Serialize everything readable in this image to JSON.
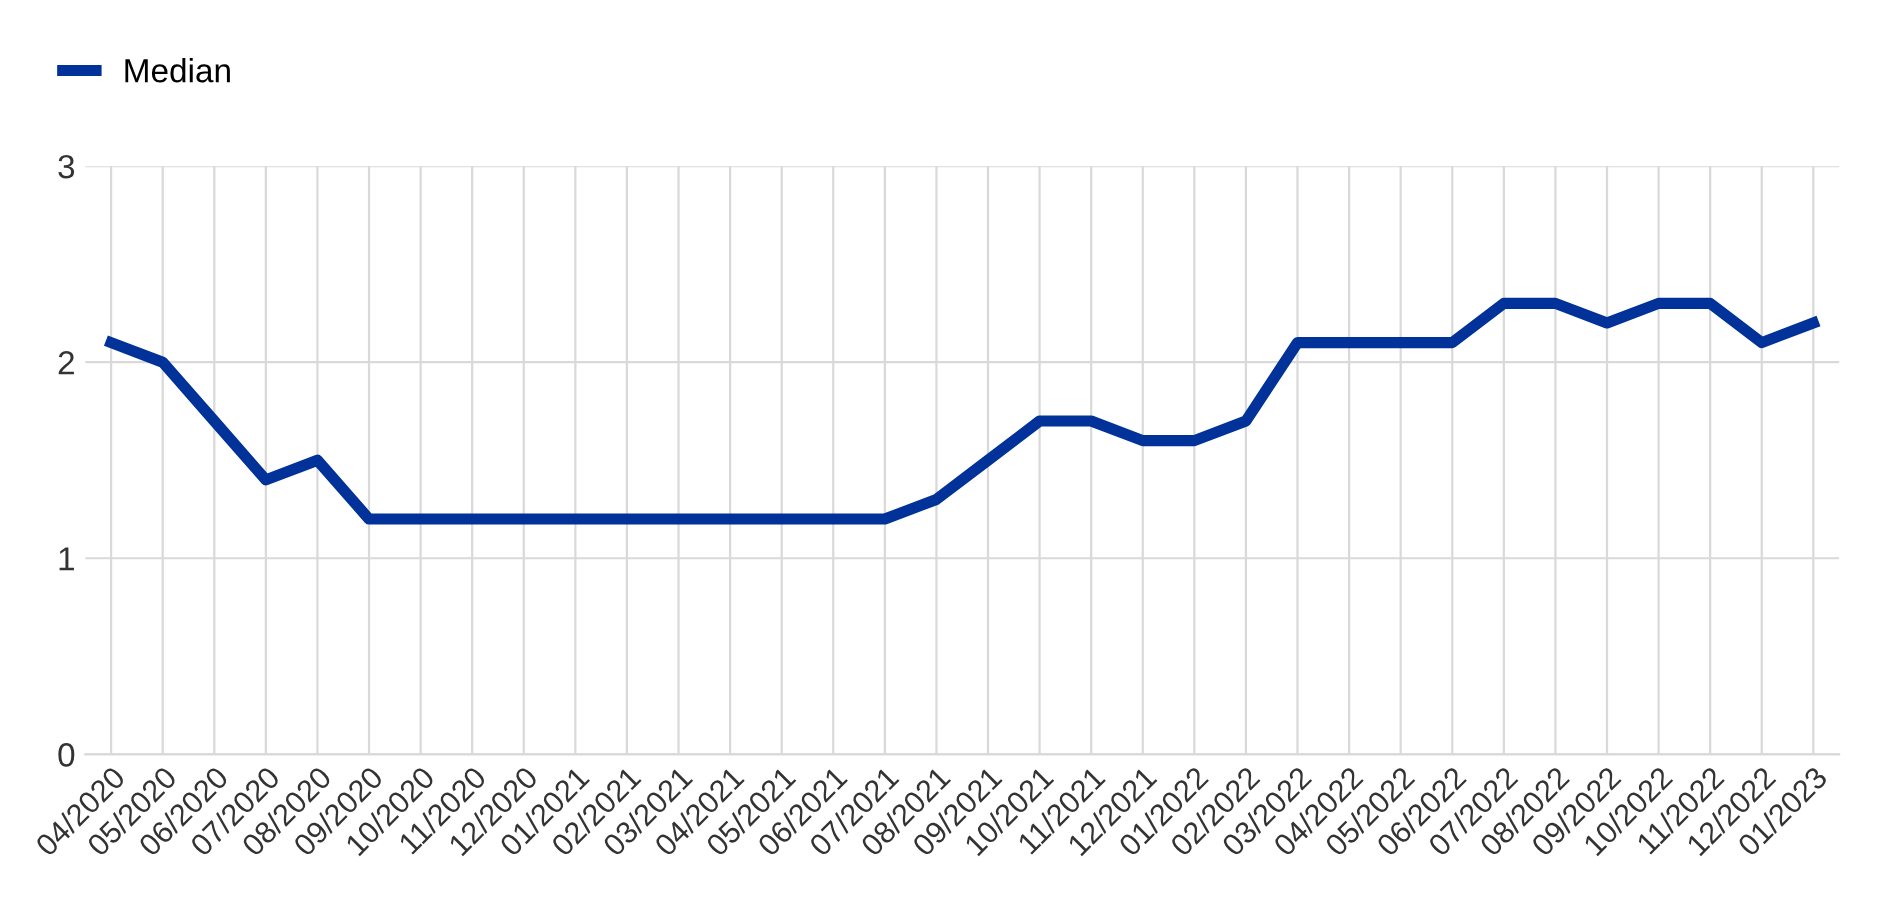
{
  "chart_data": {
    "type": "line",
    "categories": [
      "04/2020",
      "05/2020",
      "06/2020",
      "07/2020",
      "08/2020",
      "09/2020",
      "10/2020",
      "11/2020",
      "12/2020",
      "01/2021",
      "02/2021",
      "03/2021",
      "04/2021",
      "05/2021",
      "06/2021",
      "07/2021",
      "08/2021",
      "09/2021",
      "10/2021",
      "11/2021",
      "12/2021",
      "01/2022",
      "02/2022",
      "03/2022",
      "04/2022",
      "05/2022",
      "06/2022",
      "07/2022",
      "08/2022",
      "09/2022",
      "10/2022",
      "11/2022",
      "12/2022",
      "01/2023"
    ],
    "series": [
      {
        "name": "Median",
        "color": "#003299",
        "values": [
          2.1,
          2.0,
          1.7,
          1.4,
          1.5,
          1.2,
          1.2,
          1.2,
          1.2,
          1.2,
          1.2,
          1.2,
          1.2,
          1.2,
          1.2,
          1.2,
          1.3,
          1.5,
          1.7,
          1.7,
          1.6,
          1.6,
          1.7,
          2.1,
          2.1,
          2.1,
          2.1,
          2.3,
          2.3,
          2.2,
          2.3,
          2.3,
          2.1,
          2.2
        ]
      }
    ],
    "ylim": [
      0,
      3
    ],
    "yticks": [
      0,
      1,
      2,
      3
    ],
    "grid": true,
    "legend": "top left",
    "marker": "none",
    "line_style": "solid"
  }
}
